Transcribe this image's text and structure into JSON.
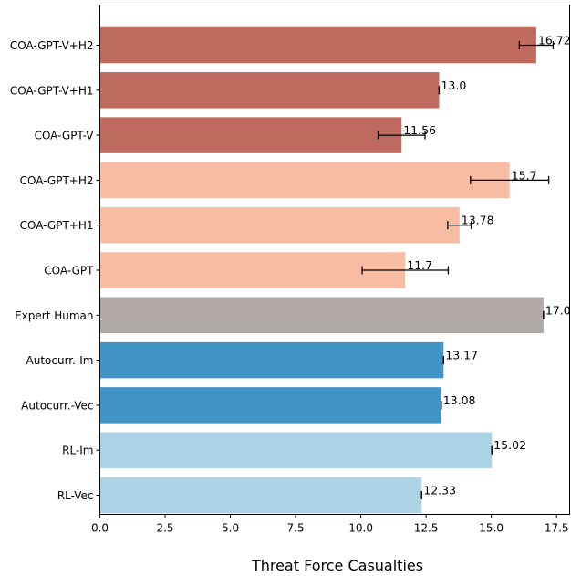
{
  "chart_data": {
    "type": "bar",
    "orientation": "horizontal",
    "xlabel": "Threat Force Casualties",
    "xlim": [
      0,
      18
    ],
    "xticks": [
      0.0,
      2.5,
      5.0,
      7.5,
      10.0,
      12.5,
      15.0,
      17.5
    ],
    "xtick_labels": [
      "0.0",
      "2.5",
      "5.0",
      "7.5",
      "10.0",
      "12.5",
      "15.0",
      "17.5"
    ],
    "grid": false,
    "categories": [
      "COA-GPT-V+H2",
      "COA-GPT-V+H1",
      "COA-GPT-V",
      "COA-GPT+H2",
      "COA-GPT+H1",
      "COA-GPT",
      "Expert Human",
      "Autocurr.-Im",
      "Autocurr.-Vec",
      "RL-Im",
      "RL-Vec"
    ],
    "values": [
      16.72,
      13.0,
      11.56,
      15.7,
      13.78,
      11.7,
      17.0,
      13.17,
      13.08,
      15.02,
      12.33
    ],
    "value_labels": [
      "16.72",
      "13.0",
      "11.56",
      "15.7",
      "13.78",
      "11.7",
      "17.0",
      "13.17",
      "13.08",
      "15.02",
      "12.33"
    ],
    "errors": [
      0.65,
      0,
      0.9,
      1.5,
      0.45,
      1.65,
      0,
      0,
      0,
      0,
      0
    ],
    "colors": [
      "#bf6a5e",
      "#bf6a5e",
      "#bf6a5e",
      "#f7bca1",
      "#f7bca1",
      "#f7bca1",
      "#b0a9a7",
      "#4394c6",
      "#4394c6",
      "#abd3e6",
      "#abd3e6"
    ]
  }
}
